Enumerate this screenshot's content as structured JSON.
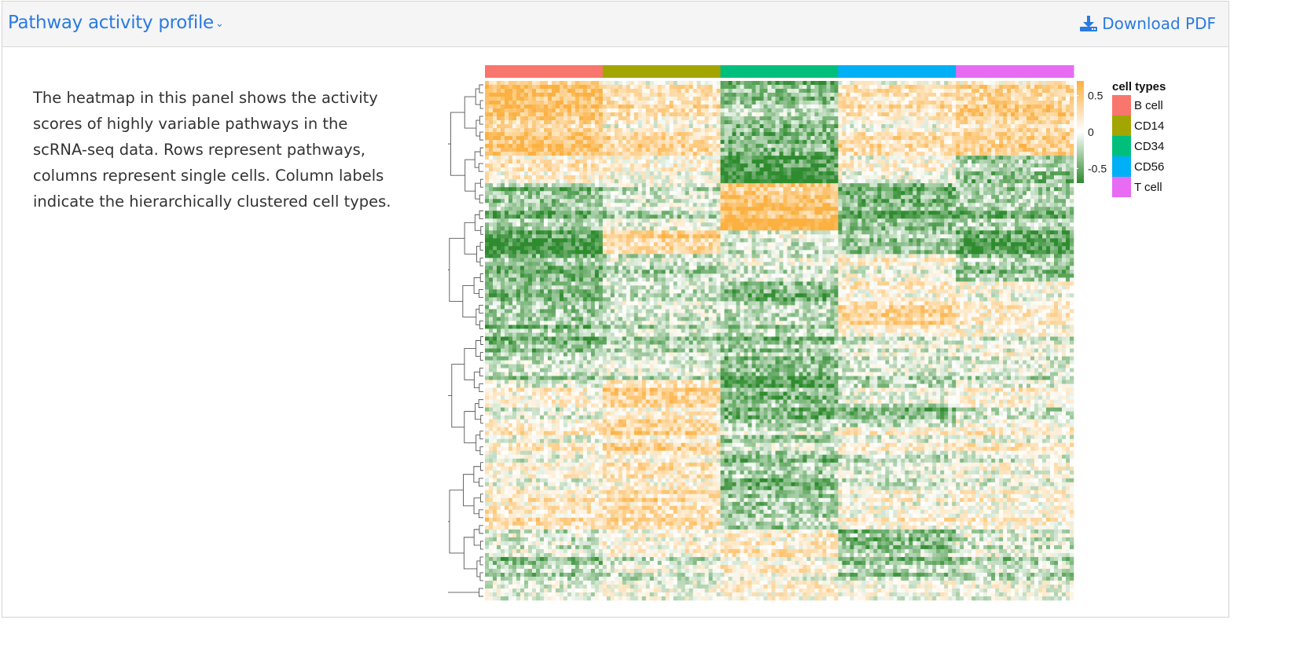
{
  "header": {
    "title": "Pathway activity profile",
    "download_label": "Download PDF"
  },
  "description": "The heatmap in this panel shows the activity scores of highly variable pathways in the scRNA-seq data. Rows represent pathways, columns represent single cells. Column labels indicate the hierarchically clustered cell types.",
  "colors": {
    "link": "#2a7ae2",
    "high": "#fbb040",
    "mid": "#ffffff",
    "low": "#2e8b2e"
  },
  "chart_data": {
    "type": "heatmap",
    "title": "",
    "column_annotation": {
      "legend_title": "cell types",
      "groups": [
        {
          "name": "B cell",
          "color": "#f8766d"
        },
        {
          "name": "CD14",
          "color": "#a3a500"
        },
        {
          "name": "CD34",
          "color": "#00bf7d"
        },
        {
          "name": "CD56",
          "color": "#00b0f6"
        },
        {
          "name": "T cell",
          "color": "#e76bf3"
        }
      ]
    },
    "color_scale": {
      "ticks": [
        0.5,
        0,
        -0.5
      ],
      "tick_labels": [
        "0.5",
        "0",
        "-0.5"
      ],
      "range": [
        -0.7,
        0.7
      ]
    },
    "row_dendrogram": true,
    "row_blocks": [
      [
        0.5,
        0.2,
        -0.4,
        0.2,
        0.3
      ],
      [
        0.4,
        0.15,
        -0.3,
        0.1,
        0.35
      ],
      [
        0.45,
        0.25,
        -0.5,
        0.2,
        0.3
      ],
      [
        0.2,
        0.1,
        -0.6,
        0.05,
        -0.3
      ],
      [
        -0.3,
        -0.1,
        0.5,
        -0.4,
        -0.2
      ],
      [
        -0.4,
        -0.2,
        0.6,
        -0.5,
        -0.4
      ],
      [
        -0.6,
        0.35,
        -0.1,
        -0.3,
        -0.55
      ],
      [
        -0.4,
        -0.2,
        -0.1,
        0.05,
        -0.3
      ],
      [
        -0.3,
        -0.1,
        -0.35,
        0.2,
        0.1
      ],
      [
        -0.4,
        -0.25,
        -0.3,
        0.25,
        0.05
      ],
      [
        -0.35,
        -0.2,
        -0.3,
        -0.05,
        0.0
      ],
      [
        -0.2,
        -0.1,
        -0.4,
        -0.15,
        -0.1
      ],
      [
        0.05,
        0.35,
        -0.45,
        -0.1,
        0.05
      ],
      [
        0.0,
        0.25,
        -0.35,
        -0.3,
        -0.05
      ],
      [
        0.1,
        0.3,
        -0.2,
        0.05,
        0.1
      ],
      [
        0.05,
        0.2,
        -0.3,
        -0.1,
        0.0
      ],
      [
        0.1,
        0.25,
        -0.35,
        0.0,
        0.05
      ],
      [
        0.25,
        0.3,
        -0.25,
        0.1,
        0.1
      ],
      [
        -0.1,
        0.1,
        0.2,
        -0.35,
        -0.1
      ],
      [
        -0.3,
        -0.1,
        0.1,
        -0.3,
        -0.2
      ],
      [
        -0.2,
        -0.15,
        0.0,
        -0.1,
        -0.15
      ]
    ]
  }
}
